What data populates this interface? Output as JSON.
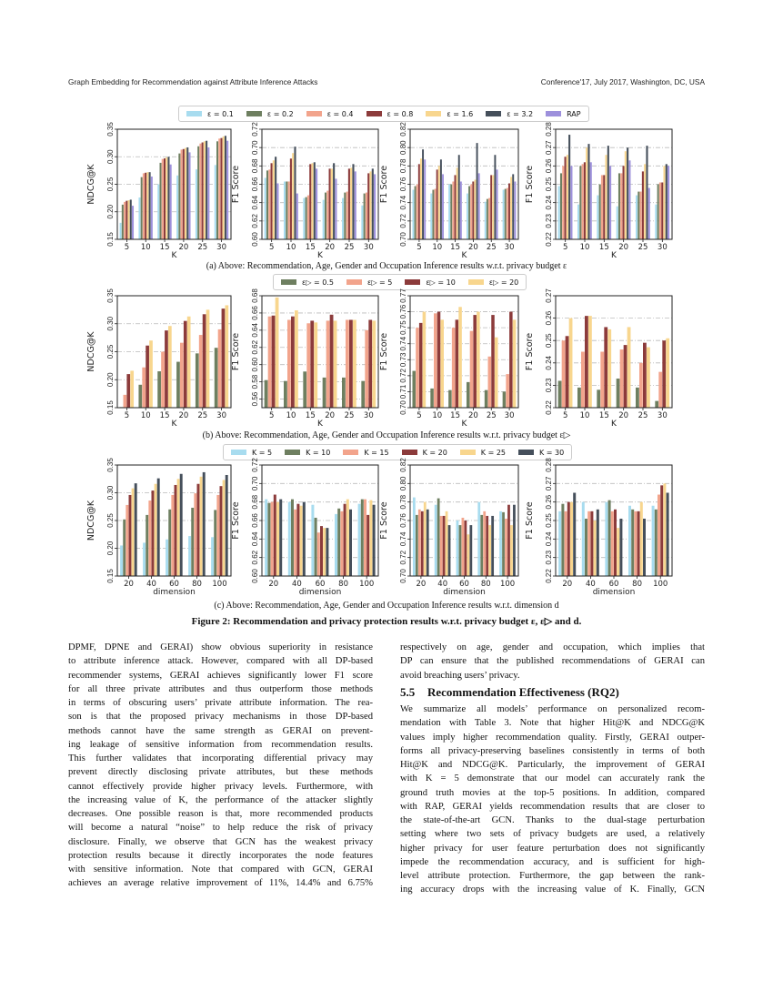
{
  "header": {
    "left": "Graph Embedding for Recommendation against Attribute Inference Attacks",
    "right": "Conference'17, July 2017, Washington, DC, USA"
  },
  "legends": {
    "a": [
      {
        "label": "ε = 0.1",
        "color": "#a8dcef"
      },
      {
        "label": "ε = 0.2",
        "color": "#6e7f60"
      },
      {
        "label": "ε = 0.4",
        "color": "#f2a48c"
      },
      {
        "label": "ε = 0.8",
        "color": "#8c3b3b"
      },
      {
        "label": "ε = 1.6",
        "color": "#f8d68e"
      },
      {
        "label": "ε = 3.2",
        "color": "#454f5b"
      },
      {
        "label": "RAP",
        "color": "#9d90dc"
      }
    ],
    "b": [
      {
        "label": "ε▷ = 0.5",
        "color": "#6e7f60"
      },
      {
        "label": "ε▷ = 5",
        "color": "#f2a48c"
      },
      {
        "label": "ε▷ = 10",
        "color": "#8c3b3b"
      },
      {
        "label": "ε▷ = 20",
        "color": "#f8d68e"
      }
    ],
    "c": [
      {
        "label": "K = 5",
        "color": "#a8dcef"
      },
      {
        "label": "K = 10",
        "color": "#6e7f60"
      },
      {
        "label": "K = 15",
        "color": "#f2a48c"
      },
      {
        "label": "K = 20",
        "color": "#8c3b3b"
      },
      {
        "label": "K = 25",
        "color": "#f8d68e"
      },
      {
        "label": "K = 30",
        "color": "#454f5b"
      }
    ]
  },
  "captions": {
    "a": "(a) Above: Recommendation, Age, Gender and Occupation Inference results w.r.t. privacy budget ε",
    "b": "(b) Above: Recommendation, Age, Gender and Occupation Inference results w.r.t. privacy budget ε▷",
    "c": "(c) Above: Recommendation, Age, Gender and Occupation Inference results w.r.t. dimension d",
    "figure": "Figure 2: Recommendation and privacy protection results w.r.t. privacy budget ε, ε▷ and d."
  },
  "chart_data": [
    {
      "type": "bar",
      "group": "a",
      "ylabel": "NDCG@K",
      "xlabel": "K",
      "categories": [
        "5",
        "10",
        "15",
        "20",
        "25",
        "30"
      ],
      "ylim": [
        0.15,
        0.35
      ],
      "yticks": [
        "0.15",
        "0.20",
        "0.25",
        "0.30",
        "0.35"
      ],
      "grid": true,
      "series": [
        [
          0.18,
          0.226,
          0.25,
          0.266,
          0.277,
          0.285
        ],
        [
          0.213,
          0.263,
          0.289,
          0.306,
          0.319,
          0.328
        ],
        [
          0.218,
          0.27,
          0.296,
          0.313,
          0.324,
          0.333
        ],
        [
          0.22,
          0.271,
          0.297,
          0.314,
          0.326,
          0.334
        ],
        [
          0.221,
          0.272,
          0.299,
          0.316,
          0.328,
          0.337
        ],
        [
          0.222,
          0.272,
          0.3,
          0.317,
          0.329,
          0.338
        ],
        [
          0.211,
          0.264,
          0.286,
          0.308,
          0.317,
          0.329
        ]
      ]
    },
    {
      "type": "bar",
      "group": "a",
      "ylabel": "F1 Score",
      "xlabel": "K",
      "categories": [
        "5",
        "10",
        "15",
        "20",
        "25",
        "30"
      ],
      "ylim": [
        0.6,
        0.72
      ],
      "yticks": [
        "0.60",
        "0.62",
        "0.64",
        "0.66",
        "0.68",
        "0.70",
        "0.72"
      ],
      "grid": true,
      "series": [
        [
          0.667,
          0.663,
          0.645,
          0.643,
          0.645,
          0.637
        ],
        [
          0.675,
          0.663,
          0.646,
          0.651,
          0.651,
          0.65
        ],
        [
          0.676,
          0.663,
          0.648,
          0.653,
          0.652,
          0.651
        ],
        [
          0.683,
          0.688,
          0.682,
          0.677,
          0.677,
          0.672
        ],
        [
          0.686,
          0.694,
          0.683,
          0.677,
          0.678,
          0.674
        ],
        [
          0.69,
          0.701,
          0.684,
          0.683,
          0.682,
          0.677
        ],
        [
          0.661,
          0.65,
          0.677,
          0.666,
          0.674,
          0.671
        ]
      ]
    },
    {
      "type": "bar",
      "group": "a",
      "ylabel": "F1 Score",
      "xlabel": "K",
      "categories": [
        "5",
        "10",
        "15",
        "20",
        "25",
        "30"
      ],
      "ylim": [
        0.7,
        0.82
      ],
      "yticks": [
        "0.70",
        "0.72",
        "0.74",
        "0.76",
        "0.78",
        "0.80",
        "0.82"
      ],
      "grid": true,
      "series": [
        [
          0.754,
          0.75,
          0.76,
          0.75,
          0.741,
          0.754
        ],
        [
          0.758,
          0.754,
          0.76,
          0.758,
          0.744,
          0.755
        ],
        [
          0.76,
          0.755,
          0.763,
          0.76,
          0.745,
          0.756
        ],
        [
          0.782,
          0.776,
          0.77,
          0.763,
          0.77,
          0.761
        ],
        [
          0.788,
          0.78,
          0.778,
          0.765,
          0.77,
          0.768
        ],
        [
          0.798,
          0.787,
          0.792,
          0.805,
          0.792,
          0.771
        ],
        [
          0.787,
          0.771,
          0.763,
          0.772,
          0.776,
          0.763
        ]
      ]
    },
    {
      "type": "bar",
      "group": "a",
      "ylabel": "F1 Score",
      "xlabel": "K",
      "categories": [
        "5",
        "10",
        "15",
        "20",
        "25",
        "30"
      ],
      "ylim": [
        0.22,
        0.28
      ],
      "yticks": [
        "0.22",
        "0.23",
        "0.24",
        "0.25",
        "0.26",
        "0.27",
        "0.28"
      ],
      "grid": true,
      "series": [
        [
          0.249,
          0.239,
          0.244,
          0.238,
          0.244,
          0.239
        ],
        [
          0.256,
          0.26,
          0.25,
          0.256,
          0.246,
          0.25
        ],
        [
          0.26,
          0.261,
          0.255,
          0.256,
          0.246,
          0.251
        ],
        [
          0.265,
          0.262,
          0.255,
          0.26,
          0.257,
          0.251
        ],
        [
          0.266,
          0.27,
          0.266,
          0.268,
          0.261,
          0.26
        ],
        [
          0.277,
          0.272,
          0.271,
          0.27,
          0.271,
          0.261
        ],
        [
          0.26,
          0.262,
          0.26,
          0.263,
          0.248,
          0.26
        ]
      ]
    },
    {
      "type": "bar",
      "group": "b",
      "ylabel": "NDCG@K",
      "xlabel": "K",
      "categories": [
        "5",
        "10",
        "15",
        "20",
        "25",
        "30"
      ],
      "ylim": [
        0.15,
        0.35
      ],
      "yticks": [
        "0.15",
        "0.20",
        "0.25",
        "0.30",
        "0.35"
      ],
      "grid": true,
      "series": [
        [
          0.151,
          0.191,
          0.215,
          0.232,
          0.247,
          0.257
        ],
        [
          0.173,
          0.222,
          0.25,
          0.266,
          0.28,
          0.29
        ],
        [
          0.21,
          0.261,
          0.288,
          0.305,
          0.317,
          0.327
        ],
        [
          0.216,
          0.27,
          0.296,
          0.313,
          0.325,
          0.333
        ]
      ]
    },
    {
      "type": "bar",
      "group": "b",
      "ylabel": "F1 Score",
      "xlabel": "K",
      "categories": [
        "5",
        "10",
        "15",
        "20",
        "25",
        "30"
      ],
      "ylim": [
        0.55,
        0.68
      ],
      "yticks": [
        "0.56",
        "0.58",
        "0.60",
        "0.62",
        "0.64",
        "0.66",
        "0.68"
      ],
      "grid": true,
      "series": [
        [
          0.582,
          0.581,
          0.592,
          0.585,
          0.585,
          0.581
        ],
        [
          0.656,
          0.652,
          0.648,
          0.651,
          0.652,
          0.64
        ],
        [
          0.657,
          0.656,
          0.651,
          0.658,
          0.652,
          0.652
        ],
        [
          0.678,
          0.663,
          0.649,
          0.651,
          0.652,
          0.651
        ]
      ]
    },
    {
      "type": "bar",
      "group": "b",
      "ylabel": "F1 Score",
      "xlabel": "K",
      "categories": [
        "5",
        "10",
        "15",
        "20",
        "25",
        "30"
      ],
      "ylim": [
        0.7,
        0.77
      ],
      "yticks": [
        "0.70",
        "0.71",
        "0.72",
        "0.73",
        "0.74",
        "0.75",
        "0.76",
        "0.77"
      ],
      "grid": true,
      "series": [
        [
          0.723,
          0.712,
          0.711,
          0.716,
          0.711,
          0.71
        ],
        [
          0.75,
          0.759,
          0.75,
          0.748,
          0.732,
          0.721
        ],
        [
          0.753,
          0.76,
          0.755,
          0.758,
          0.758,
          0.76
        ],
        [
          0.76,
          0.755,
          0.763,
          0.76,
          0.744,
          0.755
        ]
      ]
    },
    {
      "type": "bar",
      "group": "b",
      "ylabel": "F1 Score",
      "xlabel": "K",
      "categories": [
        "5",
        "10",
        "15",
        "20",
        "25",
        "30"
      ],
      "ylim": [
        0.22,
        0.27
      ],
      "yticks": [
        "0.22",
        "0.23",
        "0.24",
        "0.25",
        "0.26",
        "0.27"
      ],
      "grid": true,
      "series": [
        [
          0.232,
          0.229,
          0.228,
          0.233,
          0.229,
          0.223
        ],
        [
          0.25,
          0.245,
          0.245,
          0.246,
          0.24,
          0.236
        ],
        [
          0.252,
          0.261,
          0.256,
          0.248,
          0.249,
          0.25
        ],
        [
          0.26,
          0.261,
          0.255,
          0.256,
          0.247,
          0.251
        ]
      ]
    },
    {
      "type": "bar",
      "group": "c",
      "ylabel": "NDCG@K",
      "xlabel": "dimension",
      "categories": [
        "20",
        "40",
        "60",
        "80",
        "100"
      ],
      "ylim": [
        0.15,
        0.35
      ],
      "yticks": [
        "0.15",
        "0.20",
        "0.25",
        "0.30",
        "0.35"
      ],
      "grid": true,
      "series": [
        [
          0.205,
          0.21,
          0.216,
          0.222,
          0.22
        ],
        [
          0.252,
          0.26,
          0.27,
          0.273,
          0.269
        ],
        [
          0.278,
          0.286,
          0.296,
          0.299,
          0.296
        ],
        [
          0.296,
          0.304,
          0.314,
          0.316,
          0.312
        ],
        [
          0.308,
          0.316,
          0.325,
          0.329,
          0.323
        ],
        [
          0.317,
          0.326,
          0.334,
          0.337,
          0.332
        ]
      ]
    },
    {
      "type": "bar",
      "group": "c",
      "ylabel": "F1 Score",
      "xlabel": "dimension",
      "categories": [
        "20",
        "40",
        "60",
        "80",
        "100"
      ],
      "ylim": [
        0.6,
        0.72
      ],
      "yticks": [
        "0.60",
        "0.62",
        "0.64",
        "0.66",
        "0.68",
        "0.70",
        "0.72"
      ],
      "grid": true,
      "series": [
        [
          0.683,
          0.68,
          0.677,
          0.667,
          0.678
        ],
        [
          0.679,
          0.683,
          0.663,
          0.673,
          0.683
        ],
        [
          0.68,
          0.672,
          0.647,
          0.67,
          0.683
        ],
        [
          0.688,
          0.678,
          0.654,
          0.678,
          0.666
        ],
        [
          0.68,
          0.676,
          0.652,
          0.683,
          0.682
        ],
        [
          0.683,
          0.68,
          0.652,
          0.672,
          0.677
        ]
      ]
    },
    {
      "type": "bar",
      "group": "c",
      "ylabel": "F1 Score",
      "xlabel": "dimension",
      "categories": [
        "20",
        "40",
        "60",
        "80",
        "100"
      ],
      "ylim": [
        0.7,
        0.82
      ],
      "yticks": [
        "0.70",
        "0.72",
        "0.74",
        "0.76",
        "0.78",
        "0.80",
        "0.82"
      ],
      "grid": true,
      "series": [
        [
          0.785,
          0.777,
          0.76,
          0.78,
          0.77
        ],
        [
          0.766,
          0.784,
          0.755,
          0.766,
          0.769
        ],
        [
          0.772,
          0.765,
          0.763,
          0.77,
          0.762
        ],
        [
          0.77,
          0.765,
          0.76,
          0.765,
          0.777
        ],
        [
          0.78,
          0.77,
          0.745,
          0.755,
          0.755
        ],
        [
          0.772,
          0.755,
          0.755,
          0.765,
          0.777
        ]
      ]
    },
    {
      "type": "bar",
      "group": "c",
      "ylabel": "F1 Score",
      "xlabel": "dimension",
      "categories": [
        "20",
        "40",
        "60",
        "80",
        "100"
      ],
      "ylim": [
        0.22,
        0.28
      ],
      "yticks": [
        "0.22",
        "0.23",
        "0.24",
        "0.25",
        "0.26",
        "0.27",
        "0.28"
      ],
      "grid": true,
      "series": [
        [
          0.255,
          0.26,
          0.26,
          0.258,
          0.258
        ],
        [
          0.259,
          0.251,
          0.261,
          0.256,
          0.256
        ],
        [
          0.255,
          0.255,
          0.255,
          0.255,
          0.264
        ],
        [
          0.26,
          0.255,
          0.256,
          0.255,
          0.269
        ],
        [
          0.26,
          0.25,
          0.246,
          0.26,
          0.27
        ],
        [
          0.265,
          0.256,
          0.251,
          0.251,
          0.265
        ]
      ]
    }
  ],
  "body": {
    "left_lines": [
      "DPMF, DPNE and GERAI) show obvious superiority in resistance",
      "to attribute inference attack. However, compared with all DP-based",
      "recommender systems, GERAI achieves significantly lower F1 score",
      "for all three private attributes and thus outperform those methods",
      "in terms of obscuring users’ private attribute information. The rea-",
      "son is that the proposed privacy mechanisms in those DP-based",
      "methods cannot have the same strength as GERAI on prevent-",
      "ing leakage of sensitive information from recommendation results.",
      "This further validates that incorporating differential privacy may",
      "prevent directly disclosing private attributes, but these methods",
      "cannot effectively provide higher privacy levels. Furthermore, with",
      "the increasing value of K, the performance of the attacker slightly",
      "decreases. One possible reason is that, more recommended products",
      "will become a natural “noise” to help reduce the risk of privacy",
      "disclosure. Finally, we observe that GCN has the weakest privacy",
      "protection results because it directly incorporates the node features",
      "with sensitive information. Note that compared with GCN, GERAI",
      "achieves an average relative improvement of 11%, 14.4% and 6.75%"
    ],
    "right_top_lines": [
      "respectively on age, gender and occupation, which implies that",
      "DP can ensure that the published recommendations of GERAI can",
      "avoid breaching users’ privacy."
    ],
    "section_number": "5.5",
    "section_title": "Recommendation Effectiveness (RQ2)",
    "right_lines": [
      "We summarize all models’ performance on personalized recom-",
      "mendation with Table 3. Note that higher Hit@K and NDCG@K",
      "values imply higher recommendation quality. Firstly, GERAI outper-",
      "forms all privacy-preserving baselines consistently in terms of both",
      "Hit@K and NDCG@K. Particularly, the improvement of GERAI",
      "with K = 5 demonstrate that our model can accurately rank the",
      "ground truth movies at the top-5 positions. In addition, compared",
      "with RAP, GERAI yields recommendation results that are closer to",
      "the state-of-the-art GCN. Thanks to the dual-stage perturbation",
      "setting where two sets of privacy budgets are used, a relatively",
      "higher privacy for user feature perturbation does not significantly",
      "impede the recommendation accuracy, and is sufficient for high-",
      "level attribute protection. Furthermore, the gap between the rank-",
      "ing accuracy drops with the increasing value of K. Finally, GCN"
    ]
  }
}
